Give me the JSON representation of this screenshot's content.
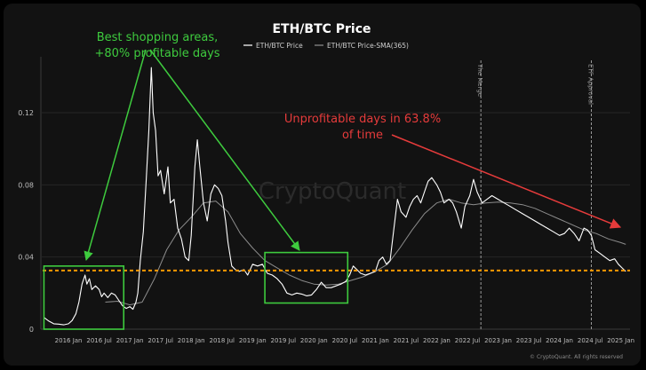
{
  "chart_data": {
    "type": "line",
    "title": "ETH/BTC Price",
    "watermark": "CryptoQuant",
    "copyright": "© CryptoQuant. All rights reserved",
    "xlabel": "",
    "ylabel": "",
    "ylim": [
      0,
      0.15
    ],
    "xlim": [
      2015.55,
      2025.15
    ],
    "y_ticks": [
      {
        "value": 0,
        "label": "0"
      },
      {
        "value": 0.04,
        "label": "0.04"
      },
      {
        "value": 0.08,
        "label": "0.08"
      },
      {
        "value": 0.12,
        "label": "0.12"
      }
    ],
    "x_ticks": [
      {
        "value": 2016.0,
        "label": "2016 Jan"
      },
      {
        "value": 2016.5,
        "label": "2016 Jul"
      },
      {
        "value": 2017.0,
        "label": "2017 Jan"
      },
      {
        "value": 2017.5,
        "label": "2017 Jul"
      },
      {
        "value": 2018.0,
        "label": "2018 Jan"
      },
      {
        "value": 2018.5,
        "label": "2018 Jul"
      },
      {
        "value": 2019.0,
        "label": "2019 Jan"
      },
      {
        "value": 2019.5,
        "label": "2019 Jul"
      },
      {
        "value": 2020.0,
        "label": "2020 Jan"
      },
      {
        "value": 2020.5,
        "label": "2020 Jul"
      },
      {
        "value": 2021.0,
        "label": "2021 Jan"
      },
      {
        "value": 2021.5,
        "label": "2021 Jul"
      },
      {
        "value": 2022.0,
        "label": "2022 Jan"
      },
      {
        "value": 2022.5,
        "label": "2022 Jul"
      },
      {
        "value": 2023.0,
        "label": "2023 Jan"
      },
      {
        "value": 2023.5,
        "label": "2023 Jul"
      },
      {
        "value": 2024.0,
        "label": "2024 Jan"
      },
      {
        "value": 2024.5,
        "label": "2024 Jul"
      },
      {
        "value": 2025.0,
        "label": "2025 Jan"
      }
    ],
    "legend_position": "top-center",
    "series": [
      {
        "name": "ETH/BTC Price",
        "color": "#ffffff",
        "points": [
          [
            2015.6,
            0.0065
          ],
          [
            2015.68,
            0.0045
          ],
          [
            2015.76,
            0.003
          ],
          [
            2015.84,
            0.0028
          ],
          [
            2015.92,
            0.0024
          ],
          [
            2016.0,
            0.003
          ],
          [
            2016.06,
            0.0048
          ],
          [
            2016.12,
            0.0085
          ],
          [
            2016.17,
            0.015
          ],
          [
            2016.22,
            0.025
          ],
          [
            2016.27,
            0.03
          ],
          [
            2016.3,
            0.025
          ],
          [
            2016.34,
            0.028
          ],
          [
            2016.38,
            0.022
          ],
          [
            2016.44,
            0.024
          ],
          [
            2016.5,
            0.022
          ],
          [
            2016.54,
            0.018
          ],
          [
            2016.58,
            0.02
          ],
          [
            2016.64,
            0.0175
          ],
          [
            2016.7,
            0.02
          ],
          [
            2016.76,
            0.019
          ],
          [
            2016.82,
            0.016
          ],
          [
            2016.88,
            0.013
          ],
          [
            2016.94,
            0.0115
          ],
          [
            2017.0,
            0.0125
          ],
          [
            2017.05,
            0.011
          ],
          [
            2017.1,
            0.015
          ],
          [
            2017.13,
            0.02
          ],
          [
            2017.17,
            0.038
          ],
          [
            2017.22,
            0.054
          ],
          [
            2017.27,
            0.085
          ],
          [
            2017.31,
            0.11
          ],
          [
            2017.35,
            0.145
          ],
          [
            2017.38,
            0.12
          ],
          [
            2017.42,
            0.11
          ],
          [
            2017.46,
            0.085
          ],
          [
            2017.5,
            0.088
          ],
          [
            2017.56,
            0.075
          ],
          [
            2017.62,
            0.09
          ],
          [
            2017.66,
            0.07
          ],
          [
            2017.72,
            0.072
          ],
          [
            2017.78,
            0.056
          ],
          [
            2017.84,
            0.05
          ],
          [
            2017.9,
            0.04
          ],
          [
            2017.96,
            0.038
          ],
          [
            2018.0,
            0.052
          ],
          [
            2018.06,
            0.09
          ],
          [
            2018.1,
            0.105
          ],
          [
            2018.14,
            0.09
          ],
          [
            2018.2,
            0.07
          ],
          [
            2018.26,
            0.06
          ],
          [
            2018.32,
            0.075
          ],
          [
            2018.38,
            0.08
          ],
          [
            2018.44,
            0.078
          ],
          [
            2018.5,
            0.074
          ],
          [
            2018.56,
            0.06
          ],
          [
            2018.6,
            0.048
          ],
          [
            2018.66,
            0.035
          ],
          [
            2018.72,
            0.033
          ],
          [
            2018.78,
            0.032
          ],
          [
            2018.86,
            0.033
          ],
          [
            2018.92,
            0.03
          ],
          [
            2019.0,
            0.036
          ],
          [
            2019.08,
            0.035
          ],
          [
            2019.16,
            0.036
          ],
          [
            2019.24,
            0.031
          ],
          [
            2019.32,
            0.03
          ],
          [
            2019.4,
            0.028
          ],
          [
            2019.48,
            0.025
          ],
          [
            2019.56,
            0.02
          ],
          [
            2019.64,
            0.019
          ],
          [
            2019.72,
            0.02
          ],
          [
            2019.8,
            0.0195
          ],
          [
            2019.88,
            0.0185
          ],
          [
            2019.96,
            0.019
          ],
          [
            2020.04,
            0.022
          ],
          [
            2020.12,
            0.026
          ],
          [
            2020.2,
            0.023
          ],
          [
            2020.28,
            0.023
          ],
          [
            2020.36,
            0.024
          ],
          [
            2020.44,
            0.025
          ],
          [
            2020.52,
            0.0265
          ],
          [
            2020.58,
            0.03
          ],
          [
            2020.64,
            0.035
          ],
          [
            2020.7,
            0.033
          ],
          [
            2020.76,
            0.031
          ],
          [
            2020.84,
            0.03
          ],
          [
            2020.92,
            0.031
          ],
          [
            2021.0,
            0.032
          ],
          [
            2021.06,
            0.038
          ],
          [
            2021.12,
            0.04
          ],
          [
            2021.18,
            0.036
          ],
          [
            2021.24,
            0.038
          ],
          [
            2021.3,
            0.055
          ],
          [
            2021.36,
            0.072
          ],
          [
            2021.42,
            0.065
          ],
          [
            2021.5,
            0.062
          ],
          [
            2021.56,
            0.068
          ],
          [
            2021.62,
            0.072
          ],
          [
            2021.68,
            0.074
          ],
          [
            2021.74,
            0.07
          ],
          [
            2021.8,
            0.076
          ],
          [
            2021.86,
            0.082
          ],
          [
            2021.92,
            0.084
          ],
          [
            2022.0,
            0.08
          ],
          [
            2022.06,
            0.076
          ],
          [
            2022.12,
            0.07
          ],
          [
            2022.2,
            0.072
          ],
          [
            2022.26,
            0.07
          ],
          [
            2022.32,
            0.065
          ],
          [
            2022.4,
            0.056
          ],
          [
            2022.46,
            0.068
          ],
          [
            2022.54,
            0.074
          ],
          [
            2022.6,
            0.083
          ],
          [
            2022.66,
            0.076
          ],
          [
            2022.74,
            0.07
          ],
          [
            2022.82,
            0.072
          ],
          [
            2022.9,
            0.074
          ],
          [
            2023.0,
            0.072
          ],
          [
            2023.1,
            0.07
          ],
          [
            2023.2,
            0.068
          ],
          [
            2023.3,
            0.066
          ],
          [
            2023.4,
            0.064
          ],
          [
            2023.5,
            0.062
          ],
          [
            2023.6,
            0.06
          ],
          [
            2023.7,
            0.058
          ],
          [
            2023.8,
            0.056
          ],
          [
            2023.9,
            0.054
          ],
          [
            2024.0,
            0.052
          ],
          [
            2024.08,
            0.053
          ],
          [
            2024.16,
            0.056
          ],
          [
            2024.24,
            0.053
          ],
          [
            2024.32,
            0.049
          ],
          [
            2024.4,
            0.056
          ],
          [
            2024.46,
            0.055
          ],
          [
            2024.52,
            0.052
          ],
          [
            2024.58,
            0.044
          ],
          [
            2024.66,
            0.042
          ],
          [
            2024.74,
            0.04
          ],
          [
            2024.82,
            0.038
          ],
          [
            2024.9,
            0.039
          ],
          [
            2024.96,
            0.036
          ],
          [
            2025.02,
            0.034
          ],
          [
            2025.08,
            0.032
          ]
        ]
      },
      {
        "name": "ETH/BTC Price-SMA(365)",
        "color": "#8c8c8c",
        "points": [
          [
            2016.6,
            0.015
          ],
          [
            2016.8,
            0.0155
          ],
          [
            2017.0,
            0.0135
          ],
          [
            2017.2,
            0.015
          ],
          [
            2017.4,
            0.028
          ],
          [
            2017.6,
            0.044
          ],
          [
            2017.8,
            0.055
          ],
          [
            2018.0,
            0.062
          ],
          [
            2018.2,
            0.07
          ],
          [
            2018.4,
            0.071
          ],
          [
            2018.6,
            0.065
          ],
          [
            2018.8,
            0.053
          ],
          [
            2019.0,
            0.045
          ],
          [
            2019.2,
            0.038
          ],
          [
            2019.4,
            0.034
          ],
          [
            2019.6,
            0.03
          ],
          [
            2019.8,
            0.027
          ],
          [
            2020.0,
            0.025
          ],
          [
            2020.2,
            0.0245
          ],
          [
            2020.4,
            0.025
          ],
          [
            2020.6,
            0.027
          ],
          [
            2020.8,
            0.029
          ],
          [
            2021.0,
            0.032
          ],
          [
            2021.2,
            0.036
          ],
          [
            2021.4,
            0.045
          ],
          [
            2021.6,
            0.055
          ],
          [
            2021.8,
            0.064
          ],
          [
            2022.0,
            0.07
          ],
          [
            2022.2,
            0.072
          ],
          [
            2022.4,
            0.07
          ],
          [
            2022.6,
            0.069
          ],
          [
            2022.8,
            0.07
          ],
          [
            2023.0,
            0.0705
          ],
          [
            2023.2,
            0.07
          ],
          [
            2023.4,
            0.069
          ],
          [
            2023.6,
            0.067
          ],
          [
            2023.8,
            0.064
          ],
          [
            2024.0,
            0.061
          ],
          [
            2024.2,
            0.058
          ],
          [
            2024.4,
            0.055
          ],
          [
            2024.6,
            0.053
          ],
          [
            2024.8,
            0.05
          ],
          [
            2025.0,
            0.048
          ],
          [
            2025.08,
            0.047
          ]
        ]
      }
    ],
    "threshold": {
      "value": 0.0325,
      "color": "#ff9900"
    },
    "vertical_markers": [
      {
        "x": 2022.72,
        "label": "The Merge"
      },
      {
        "x": 2024.52,
        "label": "ETF Approval"
      }
    ],
    "highlight_boxes": [
      {
        "x0": 2015.6,
        "x1": 2016.9,
        "y0": 0.0,
        "y1": 0.035,
        "color": "#3ecb3e"
      },
      {
        "x0": 2019.2,
        "x1": 2020.55,
        "y0": 0.0145,
        "y1": 0.0425,
        "color": "#3ecb3e"
      }
    ],
    "annotations": {
      "green": [
        "Best shopping areas,",
        "+80% profitable days"
      ],
      "red": [
        "Unprofitable days in 63.8%",
        "of time"
      ]
    }
  }
}
